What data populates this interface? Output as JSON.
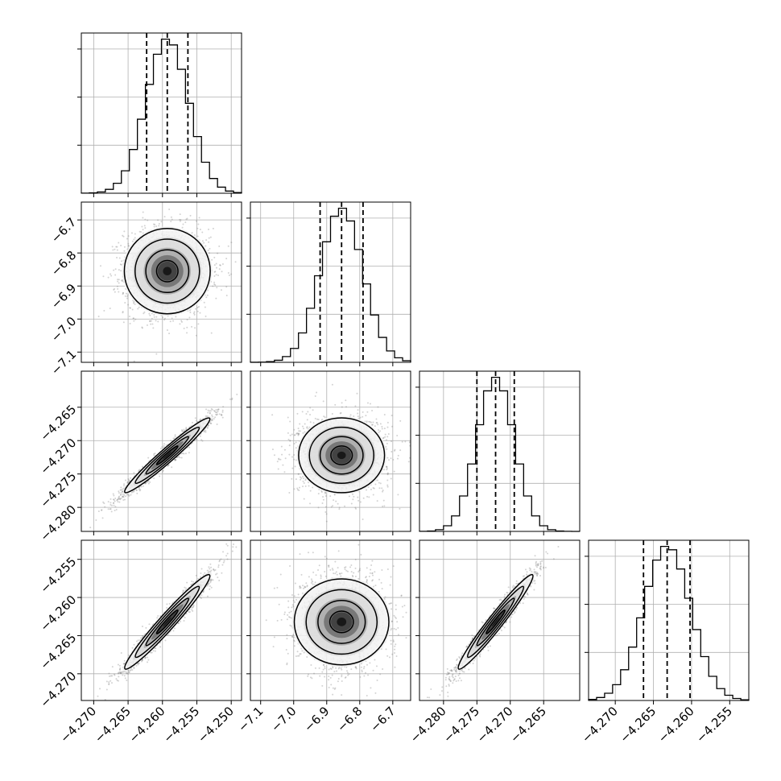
{
  "chart_data": {
    "type": "corner",
    "grid": true,
    "colors": {
      "line": "#000000",
      "grid": "#b0b0b0",
      "points": "#808080",
      "background": "#ffffff"
    },
    "parameters": [
      {
        "mean": -4.2593,
        "sd": 0.0031,
        "quantiles": [
          -4.2623,
          -4.2593,
          -4.2563
        ],
        "range": [
          -4.2718,
          -4.2485
        ],
        "ticks": [
          -4.27,
          -4.265,
          -4.26,
          -4.255,
          -4.25
        ],
        "ticklabels": [
          "−4.270",
          "−4.265",
          "−4.260",
          "−4.255",
          "−4.250"
        ]
      },
      {
        "mean": -6.855,
        "sd": 0.065,
        "quantiles": [
          -6.92,
          -6.855,
          -6.79
        ],
        "range": [
          -7.131,
          -6.646
        ],
        "ticks": [
          -7.1,
          -7.0,
          -6.9,
          -6.8,
          -6.7
        ],
        "ticklabels": [
          "−7.1",
          "−7.0",
          "−6.9",
          "−6.8",
          "−6.7"
        ]
      },
      {
        "mean": -4.2722,
        "sd": 0.0028,
        "quantiles": [
          -4.275,
          -4.2722,
          -4.2694
        ],
        "range": [
          -4.2836,
          -4.2596
        ],
        "ticks": [
          -4.28,
          -4.275,
          -4.27,
          -4.265
        ],
        "ticklabels": [
          "−4.280",
          "−4.275",
          "−4.270",
          "−4.265"
        ]
      },
      {
        "mean": -4.2632,
        "sd": 0.0031,
        "quantiles": [
          -4.2663,
          -4.2632,
          -4.2602
        ],
        "range": [
          -4.2735,
          -4.2525
        ],
        "ticks": [
          -4.27,
          -4.265,
          -4.26,
          -4.255
        ],
        "ticklabels": [
          "−4.270",
          "−4.265",
          "−4.260",
          "−4.255"
        ]
      }
    ],
    "correlations": [
      [
        1,
        0,
        0.97,
        0.97
      ],
      [
        0,
        1,
        0,
        0
      ],
      [
        0.97,
        0,
        1,
        0.97
      ],
      [
        0.97,
        0,
        0.97,
        1
      ]
    ],
    "histogram_bins": 20,
    "contour_levels_sigma": [
      0.5,
      1.0,
      1.5,
      2.0
    ]
  }
}
